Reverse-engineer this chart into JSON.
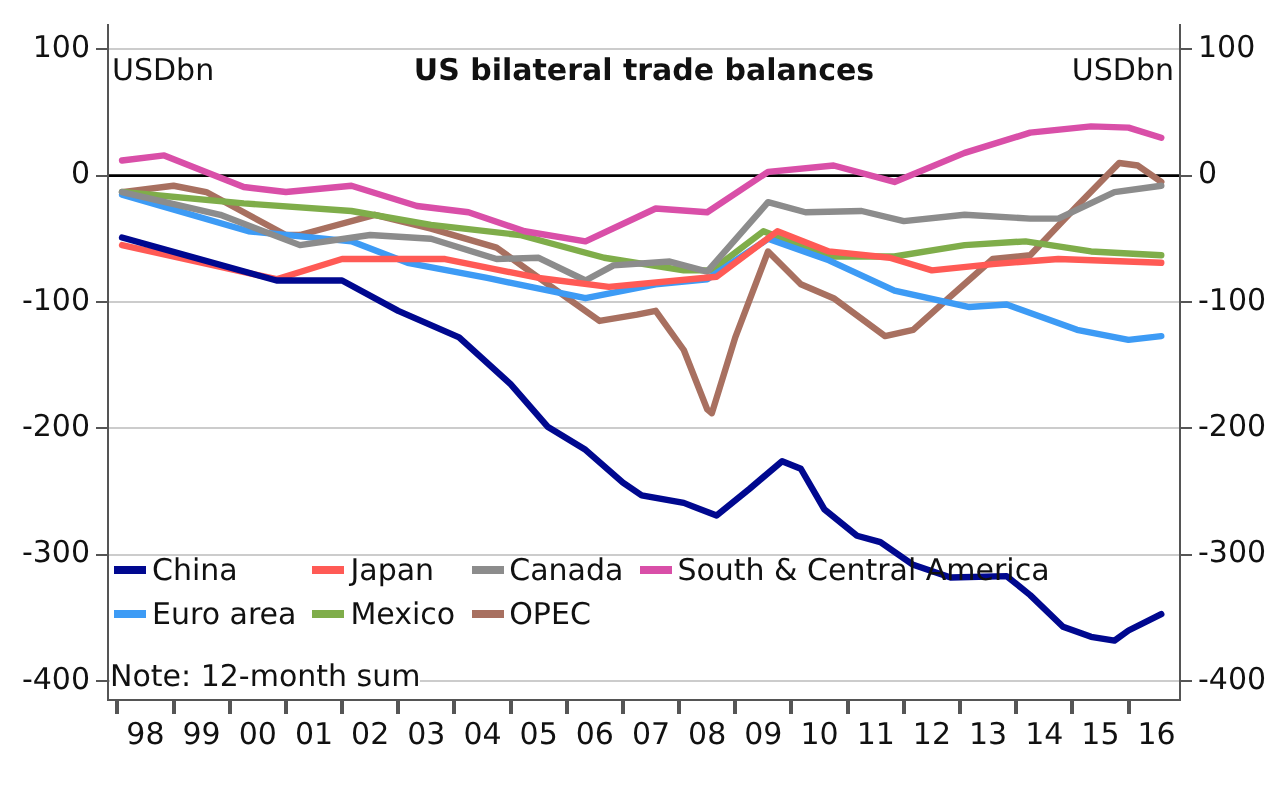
{
  "chart_data": {
    "type": "line",
    "title": "US bilateral trade balances",
    "ylabel": "USDbn",
    "y2label": "USDbn",
    "annotations": [
      "Note: 12-month sum"
    ],
    "xlim": [
      "1997-11",
      "2016-12"
    ],
    "ylim": [
      -415,
      120
    ],
    "y2lim": [
      -415,
      120
    ],
    "yticks": [
      100,
      0,
      -100,
      -200,
      -300,
      -400
    ],
    "y2ticks": [
      100,
      0,
      -100,
      -200,
      -300,
      -400
    ],
    "xticks": [
      {
        "value": "1998-01",
        "label": null
      },
      {
        "value": "1998-07",
        "label": "98"
      },
      {
        "value": "1999-01",
        "label": null
      },
      {
        "value": "1999-07",
        "label": "99"
      },
      {
        "value": "2000-01",
        "label": null
      },
      {
        "value": "2000-07",
        "label": "00"
      },
      {
        "value": "2001-01",
        "label": null
      },
      {
        "value": "2001-07",
        "label": "01"
      },
      {
        "value": "2002-01",
        "label": null
      },
      {
        "value": "2002-07",
        "label": "02"
      },
      {
        "value": "2003-01",
        "label": null
      },
      {
        "value": "2003-07",
        "label": "03"
      },
      {
        "value": "2004-01",
        "label": null
      },
      {
        "value": "2004-07",
        "label": "04"
      },
      {
        "value": "2005-01",
        "label": null
      },
      {
        "value": "2005-07",
        "label": "05"
      },
      {
        "value": "2006-01",
        "label": null
      },
      {
        "value": "2006-07",
        "label": "06"
      },
      {
        "value": "2007-01",
        "label": null
      },
      {
        "value": "2007-07",
        "label": "07"
      },
      {
        "value": "2008-01",
        "label": null
      },
      {
        "value": "2008-07",
        "label": "08"
      },
      {
        "value": "2009-01",
        "label": null
      },
      {
        "value": "2009-07",
        "label": "09"
      },
      {
        "value": "2010-01",
        "label": null
      },
      {
        "value": "2010-07",
        "label": "10"
      },
      {
        "value": "2011-01",
        "label": null
      },
      {
        "value": "2011-07",
        "label": "11"
      },
      {
        "value": "2012-01",
        "label": null
      },
      {
        "value": "2012-07",
        "label": "12"
      },
      {
        "value": "2013-01",
        "label": null
      },
      {
        "value": "2013-07",
        "label": "13"
      },
      {
        "value": "2014-01",
        "label": null
      },
      {
        "value": "2014-07",
        "label": "14"
      },
      {
        "value": "2015-01",
        "label": null
      },
      {
        "value": "2015-07",
        "label": "15"
      },
      {
        "value": "2016-01",
        "label": null
      },
      {
        "value": "2016-07",
        "label": "16"
      }
    ],
    "grid": "y",
    "legend": "bottom left",
    "marker": "none",
    "line_style": "solid",
    "ref_lines": [
      {
        "axis": "y",
        "value": 0,
        "color": "#000000"
      }
    ],
    "series": [
      {
        "name": "China",
        "color": "#00088f",
        "x": [
          "1998-02",
          "2000-11",
          "2002-01",
          "2003-01",
          "2004-02",
          "2005-01",
          "2005-09",
          "2006-05",
          "2007-01",
          "2007-05",
          "2008-02",
          "2008-09",
          "2009-04",
          "2009-11",
          "2010-03",
          "2010-08",
          "2011-03",
          "2011-08",
          "2012-03",
          "2012-11",
          "2013-11",
          "2014-04",
          "2014-11",
          "2015-05",
          "2015-10",
          "2016-01",
          "2016-08"
        ],
        "values": [
          -49,
          -83,
          -83,
          -107,
          -128,
          -165,
          -199,
          -217,
          -243,
          -253,
          -259,
          -269,
          -248,
          -226,
          -232,
          -264,
          -285,
          -290,
          -308,
          -318,
          -317,
          -332,
          -357,
          -365,
          -368,
          -360,
          -347
        ]
      },
      {
        "name": "Japan",
        "color": "#ff5a55",
        "x": [
          "1998-02",
          "2000-11",
          "2002-01",
          "2003-11",
          "2005-07",
          "2006-10",
          "2008-09",
          "2009-10",
          "2010-09",
          "2011-10",
          "2012-07",
          "2013-08",
          "2014-10",
          "2016-08"
        ],
        "values": [
          -55,
          -82,
          -66,
          -66,
          -81,
          -88,
          -80,
          -44,
          -60,
          -65,
          -75,
          -70,
          -66,
          -69
        ]
      },
      {
        "name": "Canada",
        "color": "#8c8c8c",
        "x": [
          "1998-02",
          "1999-11",
          "2001-04",
          "2002-07",
          "2003-08",
          "2004-10",
          "2005-07",
          "2006-05",
          "2006-11",
          "2007-11",
          "2008-07",
          "2009-08",
          "2010-04",
          "2011-04",
          "2012-01",
          "2013-02",
          "2014-04",
          "2014-10",
          "2015-10",
          "2016-08"
        ],
        "values": [
          -13,
          -31,
          -55,
          -47,
          -50,
          -66,
          -65,
          -83,
          -71,
          -68,
          -76,
          -21,
          -29,
          -28,
          -36,
          -31,
          -34,
          -34,
          -13,
          -8
        ]
      },
      {
        "name": "South & Central America",
        "color": "#d94fa8",
        "x": [
          "1998-02",
          "1998-11",
          "2000-04",
          "2001-01",
          "2002-03",
          "2003-05",
          "2004-04",
          "2005-04",
          "2006-05",
          "2007-08",
          "2008-07",
          "2009-08",
          "2010-10",
          "2011-11",
          "2013-02",
          "2014-04",
          "2015-05",
          "2016-01",
          "2016-08"
        ],
        "values": [
          12,
          16,
          -9,
          -13,
          -8,
          -24,
          -29,
          -44,
          -52,
          -26,
          -29,
          3,
          8,
          -5,
          18,
          34,
          39,
          38,
          30
        ]
      },
      {
        "name": "Euro area",
        "color": "#3d9bf5",
        "x": [
          "1998-02",
          "2000-05",
          "2002-03",
          "2003-03",
          "2004-08",
          "2006-05",
          "2007-08",
          "2008-07",
          "2009-08",
          "2010-09",
          "2011-11",
          "2013-03",
          "2013-11",
          "2015-02",
          "2016-01",
          "2016-08"
        ],
        "values": [
          -15,
          -44,
          -52,
          -69,
          -81,
          -97,
          -86,
          -82,
          -50,
          -67,
          -91,
          -104,
          -102,
          -122,
          -130,
          -127
        ]
      },
      {
        "name": "Mexico",
        "color": "#7fad4a",
        "x": [
          "1998-02",
          "2000-04",
          "2002-03",
          "2003-08",
          "2005-03",
          "2006-09",
          "2008-02",
          "2008-08",
          "2009-07",
          "2010-09",
          "2011-11",
          "2013-02",
          "2014-03",
          "2015-05",
          "2016-08"
        ],
        "values": [
          -13,
          -22,
          -28,
          -39,
          -47,
          -65,
          -75,
          -75,
          -44,
          -64,
          -64,
          -55,
          -52,
          -60,
          -63
        ]
      },
      {
        "name": "OPEC",
        "color": "#a87060",
        "x": [
          "1998-02",
          "1999-01",
          "1999-08",
          "2001-01",
          "2001-04",
          "2002-08",
          "2003-08",
          "2004-10",
          "2005-09",
          "2006-08",
          "2007-04",
          "2007-08",
          "2008-02",
          "2008-07",
          "2008-08",
          "2009-01",
          "2009-08",
          "2010-03",
          "2010-10",
          "2011-09",
          "2012-03",
          "2012-09",
          "2013-08",
          "2014-04",
          "2015-02",
          "2015-11",
          "2016-03",
          "2016-08"
        ],
        "values": [
          -13,
          -8,
          -13,
          -47,
          -47,
          -31,
          -42,
          -57,
          -86,
          -115,
          -110,
          -107,
          -138,
          -185,
          -188,
          -128,
          -60,
          -86,
          -97,
          -127,
          -122,
          -102,
          -66,
          -63,
          -24,
          10,
          8,
          -5
        ]
      }
    ]
  }
}
